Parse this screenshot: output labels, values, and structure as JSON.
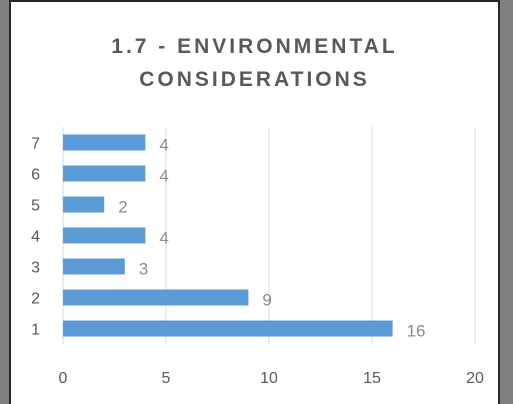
{
  "chart_data": {
    "type": "bar",
    "orientation": "horizontal",
    "title": "1.7 - ENVIRONMENTAL CONSIDERATIONS",
    "categories": [
      "1",
      "2",
      "3",
      "4",
      "5",
      "6",
      "7"
    ],
    "values": [
      16,
      9,
      3,
      4,
      2,
      4,
      4
    ],
    "xlim": [
      0,
      20
    ],
    "x_ticks": [
      0,
      5,
      10,
      15,
      20
    ],
    "grid": true,
    "bar_color": "#5b9bd5",
    "data_labels": true
  }
}
